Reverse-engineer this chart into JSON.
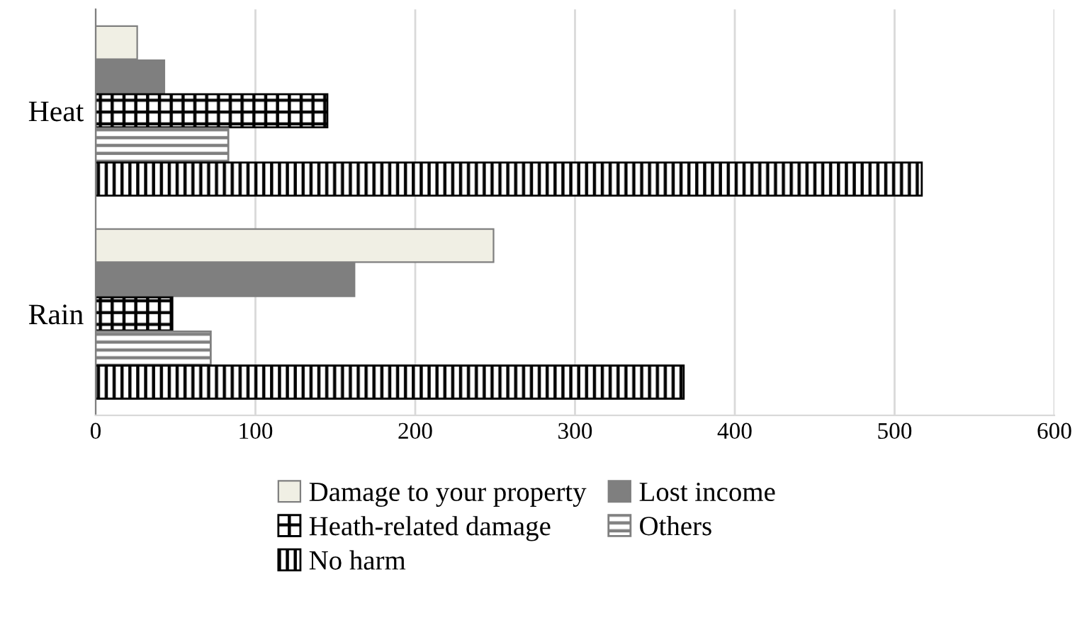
{
  "chart_data": {
    "type": "bar",
    "orientation": "horizontal",
    "categories": [
      "Heat",
      "Rain"
    ],
    "series": [
      {
        "name": "Damage to your property",
        "color": "#f0efe4",
        "values": [
          26,
          249
        ]
      },
      {
        "name": "Lost income",
        "color": "#7f7f7f",
        "values": [
          43,
          162
        ]
      },
      {
        "name": "Heath-related damage",
        "color": "#000000",
        "values": [
          145,
          48
        ]
      },
      {
        "name": "Others",
        "color": "#7f7f7f",
        "values": [
          83,
          72
        ]
      },
      {
        "name": "No harm",
        "color": "#000000",
        "values": [
          517,
          368
        ]
      }
    ],
    "xlim": [
      0,
      600
    ],
    "xticks": [
      0,
      100,
      200,
      300,
      400,
      500,
      600
    ],
    "grid": "x",
    "legend": "bottom"
  }
}
